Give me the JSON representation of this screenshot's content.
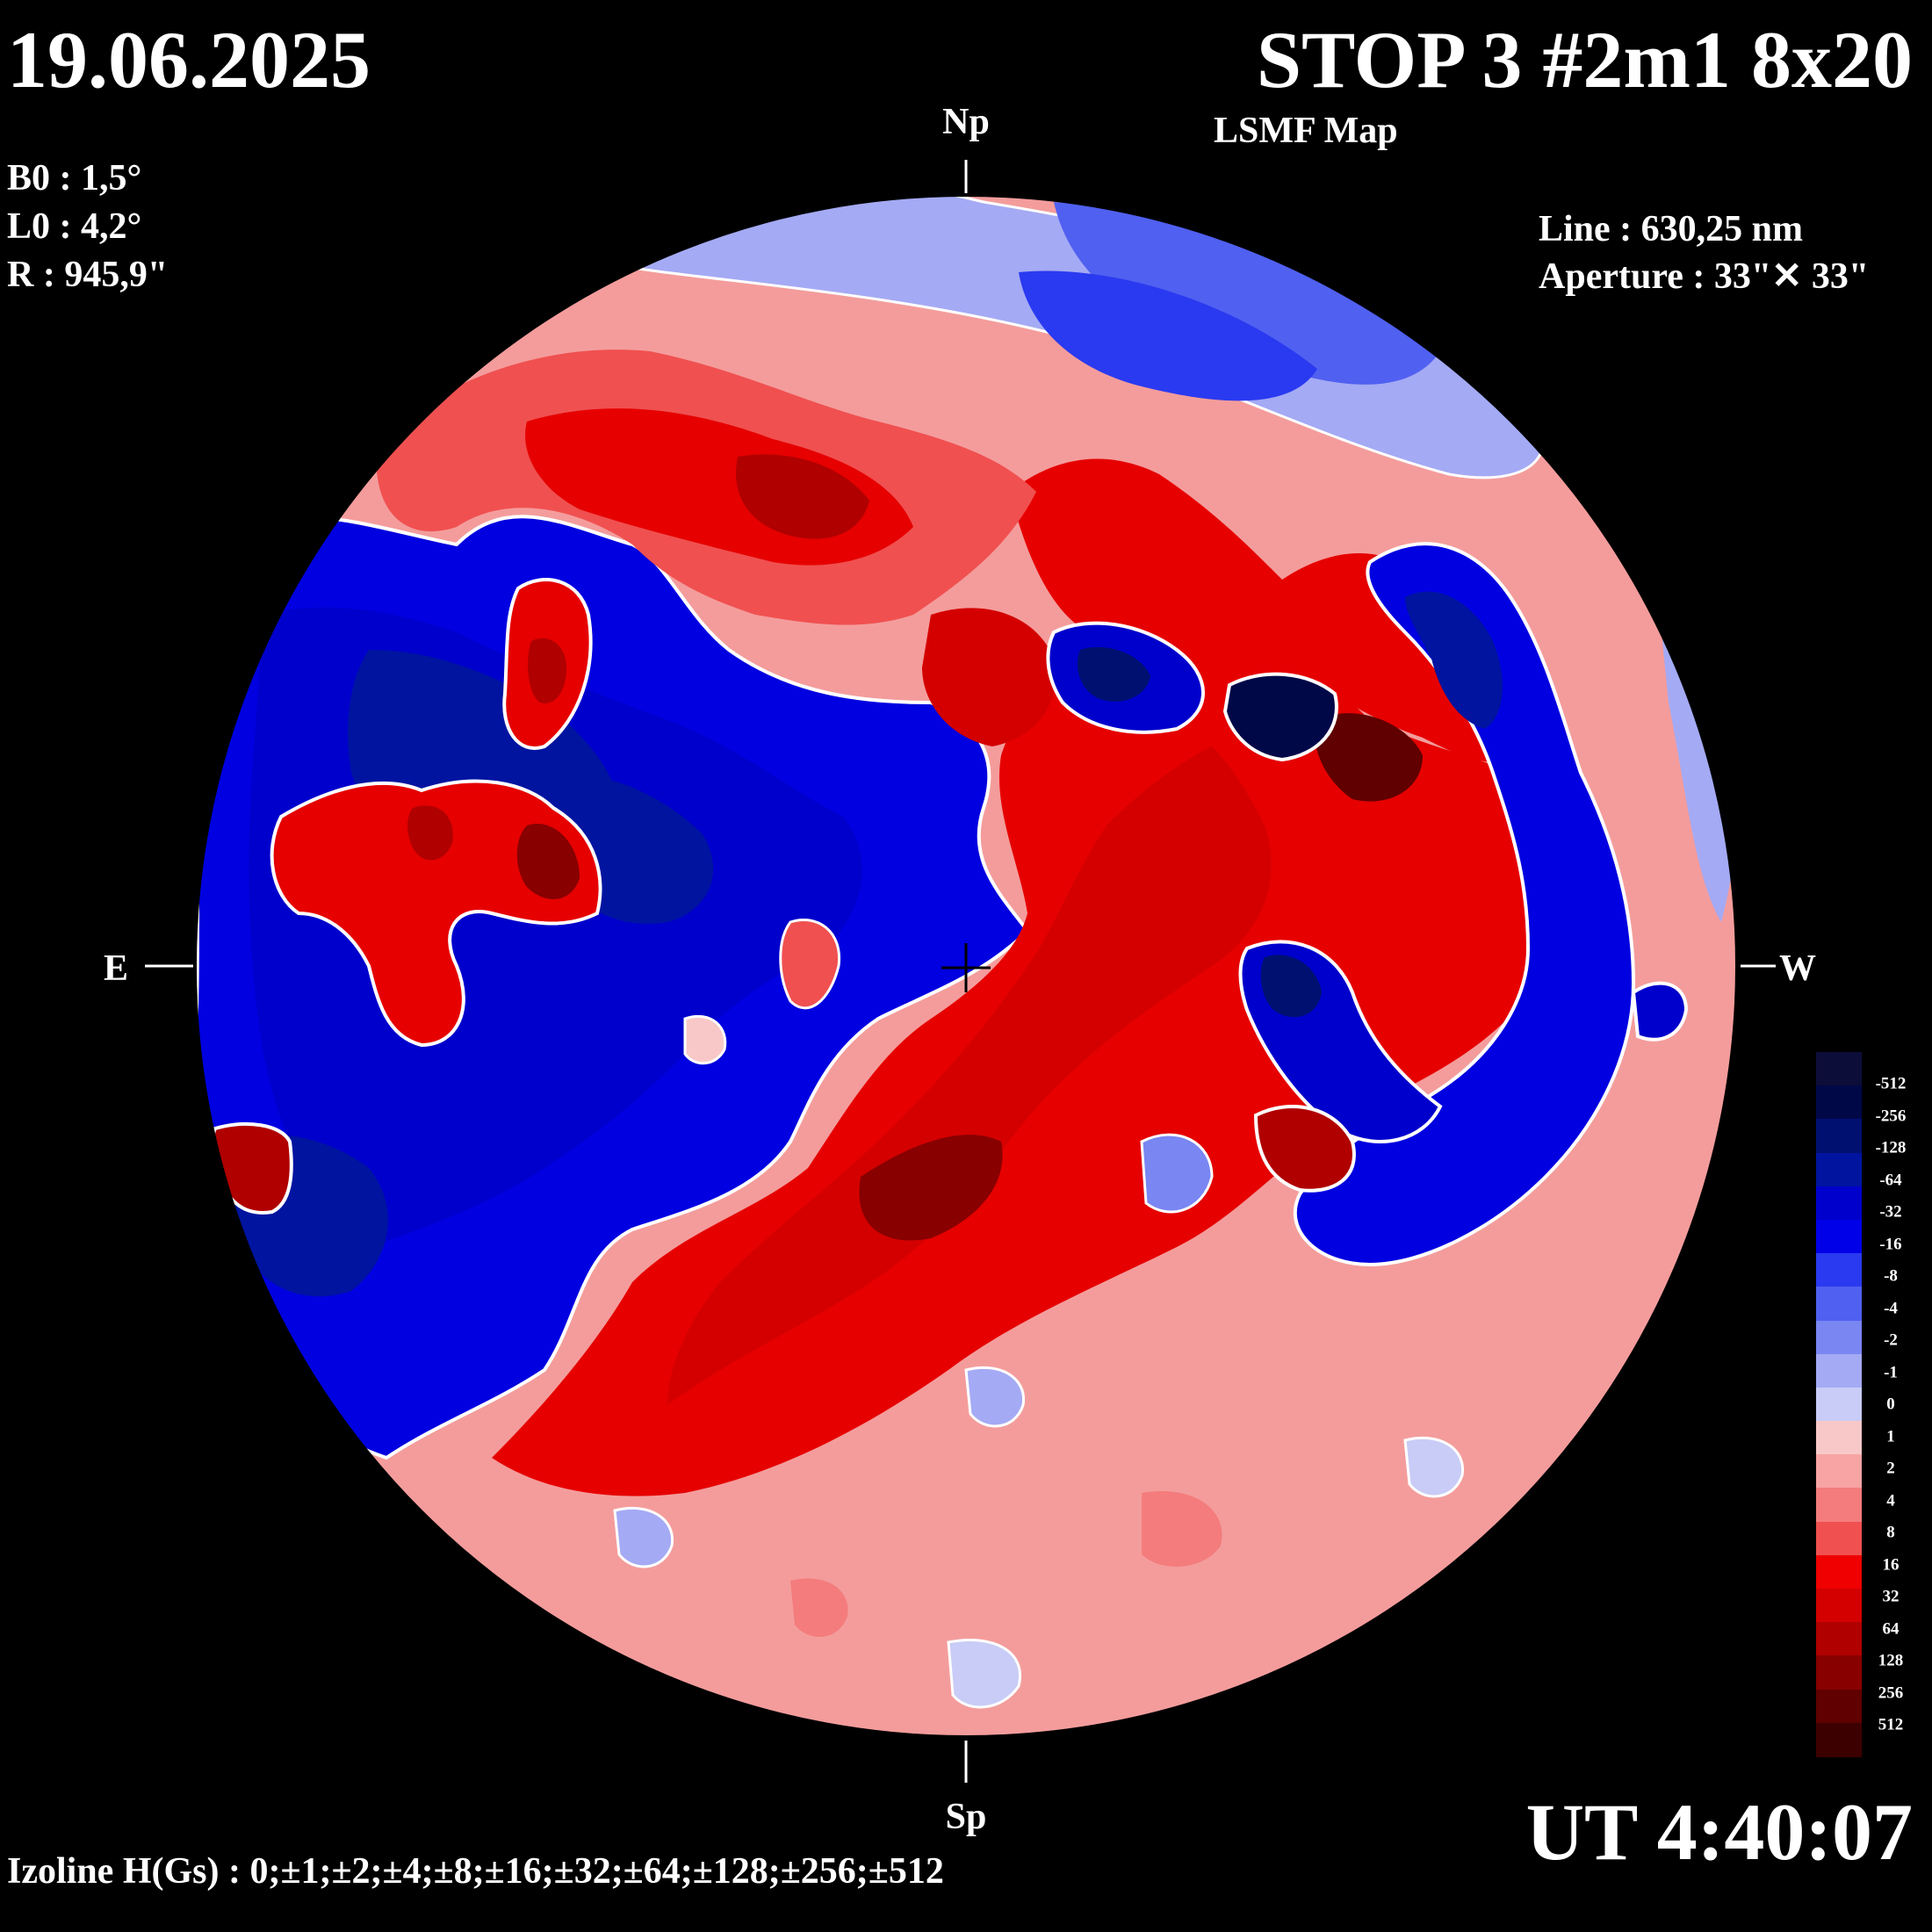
{
  "header": {
    "date": "19.06.2025",
    "title": "STOP 3 #2m1 8x20",
    "subtitle": "LSMF  Map"
  },
  "parameters": {
    "b0": "B0 : 1,5°",
    "l0": "L0 : 4,2°",
    "r": "R  : 945,9\""
  },
  "instrument": {
    "line": "Line :  630,25 nm",
    "aperture": "Aperture : 33\"✕ 33\""
  },
  "orientation": {
    "north": "Np",
    "south": "Sp",
    "east": "E",
    "west": "W"
  },
  "time": "UT 4:40:07",
  "footer": "Izoline H(Gs) : 0;±1;±2;±4;±8;±16;±32;±64;±128;±256;±512",
  "legend": {
    "labels": [
      "-512",
      "-256",
      "-128",
      "-64",
      "-32",
      "-16",
      "-8",
      "-4",
      "-2",
      "-1",
      "0",
      "1",
      "2",
      "4",
      "8",
      "16",
      "32",
      "64",
      "128",
      "256",
      "512"
    ],
    "colors": [
      "#0d0d3a",
      "#000848",
      "#001070",
      "#0014a0",
      "#0000cc",
      "#0000e8",
      "#2a3af0",
      "#5060f0",
      "#7a86f2",
      "#a4aaf4",
      "#c8ccf6",
      "#f8c8c8",
      "#f8a4a4",
      "#f47c7c",
      "#f05050",
      "#f00000",
      "#d40000",
      "#b00000",
      "#880000",
      "#600000",
      "#3c0000"
    ]
  },
  "map_features": {
    "positive_color": "#e60000",
    "negative_color": "#0000e0",
    "neutral_line_color": "#ffffff"
  }
}
